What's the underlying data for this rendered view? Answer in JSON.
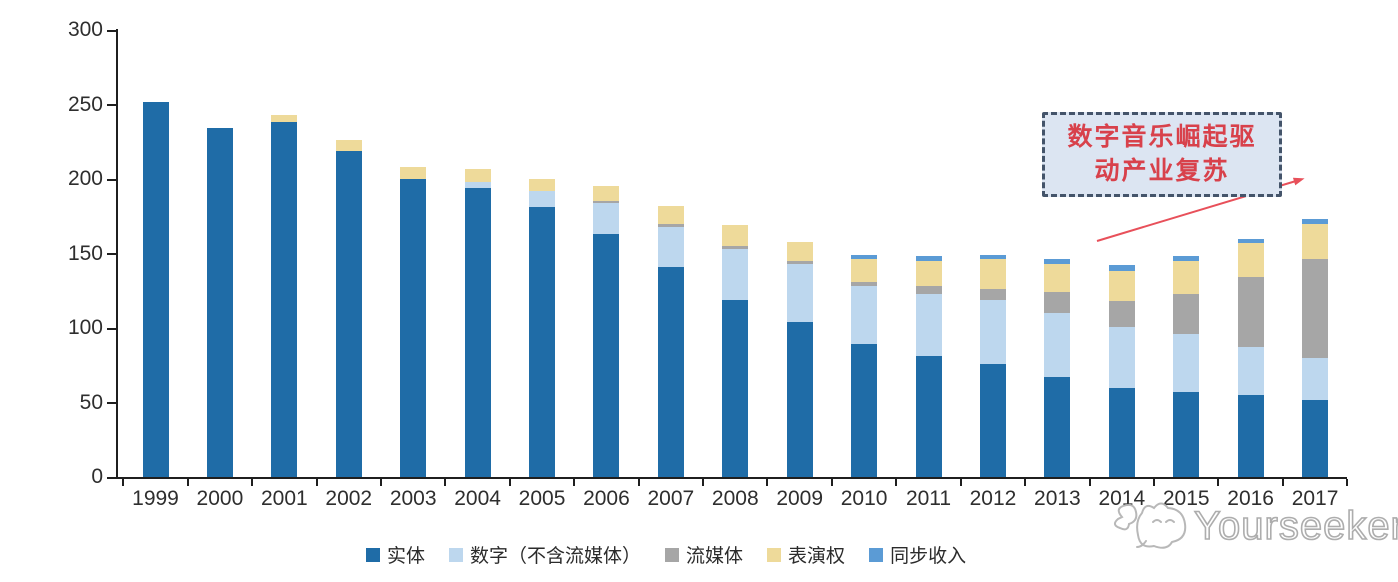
{
  "chart_data": {
    "type": "bar",
    "stacked": true,
    "categories": [
      "1999",
      "2000",
      "2001",
      "2002",
      "2003",
      "2004",
      "2005",
      "2006",
      "2007",
      "2008",
      "2009",
      "2010",
      "2011",
      "2012",
      "2013",
      "2014",
      "2015",
      "2016",
      "2017"
    ],
    "yticks": [
      0,
      50,
      100,
      150,
      200,
      250,
      300
    ],
    "ylim": [
      0,
      300
    ],
    "grid": false,
    "legend_position": "bottom",
    "series": [
      {
        "key": "physical",
        "name": "实体",
        "color": "#1F6CA7",
        "values": [
          252,
          234,
          238,
          219,
          200,
          194,
          181,
          163,
          141,
          119,
          104,
          89,
          81,
          76,
          67,
          60,
          57,
          55,
          52
        ]
      },
      {
        "key": "digital-excl-streaming",
        "name": "数字（不含流媒体）",
        "color": "#BDD7EE",
        "values": [
          0,
          0,
          0,
          0,
          0,
          4,
          11,
          21,
          27,
          34,
          39,
          39,
          42,
          43,
          43,
          41,
          39,
          32,
          28
        ]
      },
      {
        "key": "streaming",
        "name": "流媒体",
        "color": "#A6A6A6",
        "values": [
          0,
          0,
          0,
          0,
          0,
          0,
          0,
          1,
          2,
          2,
          2,
          3,
          5,
          7,
          14,
          17,
          27,
          47,
          66
        ]
      },
      {
        "key": "performance-rights",
        "name": "表演权",
        "color": "#EEDA9A",
        "values": [
          0,
          0,
          5,
          7,
          8,
          9,
          8,
          10,
          12,
          14,
          13,
          15,
          17,
          20,
          19,
          20,
          22,
          23,
          24
        ]
      },
      {
        "key": "sync-revenue",
        "name": "同步收入",
        "color": "#5B9BD5",
        "values": [
          0,
          0,
          0,
          0,
          0,
          0,
          0,
          0,
          0,
          0,
          0,
          3,
          3,
          3,
          3,
          4,
          3,
          3,
          3
        ]
      }
    ]
  },
  "annotation": {
    "line1": "数字音乐崛起驱",
    "line2": "动产业复苏",
    "box_fill": "#DCE5F2",
    "border_color": "#44546A",
    "text_color": "#D8414B",
    "arrow_color": "#E8505A"
  },
  "watermark": {
    "label": "Yourseeker"
  },
  "axis": {
    "line_color": "#1F1F1F",
    "label_color": "#2E2E2E"
  }
}
